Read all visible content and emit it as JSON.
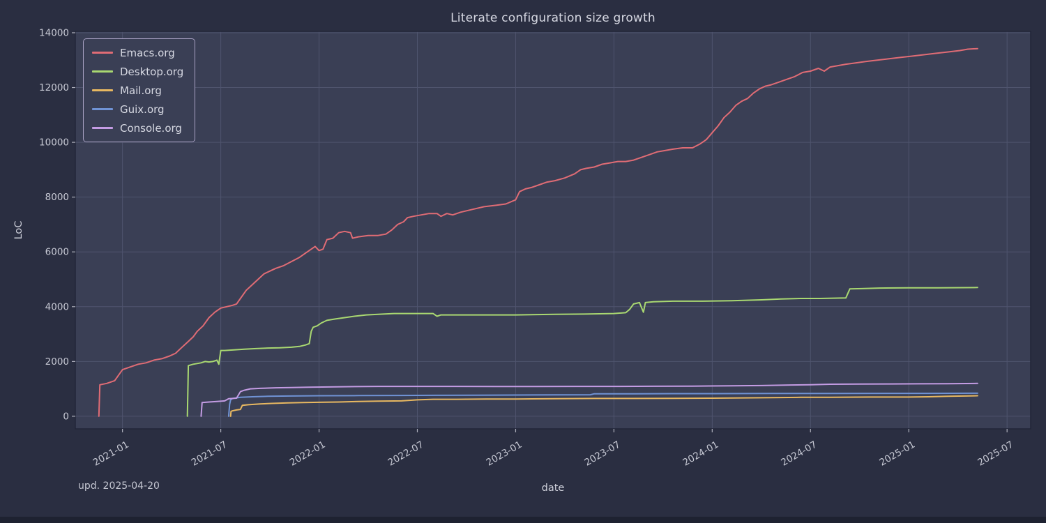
{
  "updated_note": "upd. 2025-04-20",
  "colors": {
    "background": "#2a2e41",
    "plot_background": "#3a3f55",
    "grid": "#4f546e",
    "plot_border": "#222639",
    "tick_text": "#c6c8d3",
    "title_text": "#d6d8e2",
    "tick_mark": "#aeb0bc",
    "legend_border": "#a9a2c4"
  },
  "chart_data": {
    "type": "line",
    "title": "Literate configuration size growth",
    "xlabel": "date",
    "ylabel": "LoC",
    "grid": true,
    "legend_position": "upper left",
    "xlim": [
      2020.76,
      2025.62
    ],
    "ylim": [
      -460,
      14050
    ],
    "x_ticks": [
      {
        "v": 2021.0,
        "label": "2021-01"
      },
      {
        "v": 2021.5,
        "label": "2021-07"
      },
      {
        "v": 2022.0,
        "label": "2022-01"
      },
      {
        "v": 2022.5,
        "label": "2022-07"
      },
      {
        "v": 2023.0,
        "label": "2023-01"
      },
      {
        "v": 2023.5,
        "label": "2023-07"
      },
      {
        "v": 2024.0,
        "label": "2024-01"
      },
      {
        "v": 2024.5,
        "label": "2024-07"
      },
      {
        "v": 2025.0,
        "label": "2025-01"
      },
      {
        "v": 2025.5,
        "label": "2025-07"
      }
    ],
    "y_ticks": [
      0,
      2000,
      4000,
      6000,
      8000,
      10000,
      12000,
      14000
    ],
    "series": [
      {
        "name": "Emacs.org",
        "color": "#e06c75",
        "points": [
          [
            2020.88,
            0
          ],
          [
            2020.885,
            1150
          ],
          [
            2020.92,
            1200
          ],
          [
            2020.96,
            1300
          ],
          [
            2021.0,
            1700
          ],
          [
            2021.04,
            1800
          ],
          [
            2021.08,
            1900
          ],
          [
            2021.12,
            1950
          ],
          [
            2021.16,
            2050
          ],
          [
            2021.2,
            2100
          ],
          [
            2021.24,
            2200
          ],
          [
            2021.27,
            2300
          ],
          [
            2021.3,
            2500
          ],
          [
            2021.33,
            2700
          ],
          [
            2021.36,
            2900
          ],
          [
            2021.38,
            3100
          ],
          [
            2021.41,
            3300
          ],
          [
            2021.44,
            3600
          ],
          [
            2021.47,
            3800
          ],
          [
            2021.5,
            3950
          ],
          [
            2021.53,
            4000
          ],
          [
            2021.56,
            4050
          ],
          [
            2021.58,
            4100
          ],
          [
            2021.6,
            4300
          ],
          [
            2021.63,
            4600
          ],
          [
            2021.66,
            4800
          ],
          [
            2021.69,
            5000
          ],
          [
            2021.72,
            5200
          ],
          [
            2021.75,
            5300
          ],
          [
            2021.78,
            5400
          ],
          [
            2021.82,
            5500
          ],
          [
            2021.86,
            5650
          ],
          [
            2021.9,
            5800
          ],
          [
            2021.93,
            5950
          ],
          [
            2021.96,
            6100
          ],
          [
            2021.98,
            6200
          ],
          [
            2022.0,
            6050
          ],
          [
            2022.02,
            6100
          ],
          [
            2022.04,
            6450
          ],
          [
            2022.07,
            6500
          ],
          [
            2022.1,
            6700
          ],
          [
            2022.13,
            6750
          ],
          [
            2022.16,
            6700
          ],
          [
            2022.17,
            6500
          ],
          [
            2022.2,
            6550
          ],
          [
            2022.25,
            6600
          ],
          [
            2022.3,
            6600
          ],
          [
            2022.34,
            6650
          ],
          [
            2022.37,
            6800
          ],
          [
            2022.4,
            7000
          ],
          [
            2022.43,
            7100
          ],
          [
            2022.45,
            7250
          ],
          [
            2022.48,
            7300
          ],
          [
            2022.52,
            7350
          ],
          [
            2022.56,
            7400
          ],
          [
            2022.6,
            7400
          ],
          [
            2022.62,
            7300
          ],
          [
            2022.65,
            7400
          ],
          [
            2022.68,
            7350
          ],
          [
            2022.72,
            7450
          ],
          [
            2022.78,
            7550
          ],
          [
            2022.84,
            7650
          ],
          [
            2022.9,
            7700
          ],
          [
            2022.95,
            7750
          ],
          [
            2023.0,
            7900
          ],
          [
            2023.02,
            8200
          ],
          [
            2023.05,
            8300
          ],
          [
            2023.08,
            8350
          ],
          [
            2023.12,
            8450
          ],
          [
            2023.16,
            8550
          ],
          [
            2023.2,
            8600
          ],
          [
            2023.25,
            8700
          ],
          [
            2023.3,
            8850
          ],
          [
            2023.33,
            9000
          ],
          [
            2023.36,
            9050
          ],
          [
            2023.4,
            9100
          ],
          [
            2023.44,
            9200
          ],
          [
            2023.48,
            9250
          ],
          [
            2023.52,
            9300
          ],
          [
            2023.56,
            9300
          ],
          [
            2023.6,
            9350
          ],
          [
            2023.64,
            9450
          ],
          [
            2023.68,
            9550
          ],
          [
            2023.72,
            9650
          ],
          [
            2023.76,
            9700
          ],
          [
            2023.8,
            9750
          ],
          [
            2023.85,
            9800
          ],
          [
            2023.9,
            9800
          ],
          [
            2023.94,
            9950
          ],
          [
            2023.97,
            10100
          ],
          [
            2024.0,
            10350
          ],
          [
            2024.03,
            10600
          ],
          [
            2024.06,
            10900
          ],
          [
            2024.09,
            11100
          ],
          [
            2024.12,
            11350
          ],
          [
            2024.15,
            11500
          ],
          [
            2024.18,
            11600
          ],
          [
            2024.21,
            11800
          ],
          [
            2024.24,
            11950
          ],
          [
            2024.27,
            12050
          ],
          [
            2024.3,
            12100
          ],
          [
            2024.34,
            12200
          ],
          [
            2024.38,
            12300
          ],
          [
            2024.42,
            12400
          ],
          [
            2024.46,
            12550
          ],
          [
            2024.5,
            12600
          ],
          [
            2024.54,
            12700
          ],
          [
            2024.57,
            12600
          ],
          [
            2024.6,
            12750
          ],
          [
            2024.64,
            12800
          ],
          [
            2024.68,
            12850
          ],
          [
            2024.73,
            12900
          ],
          [
            2024.78,
            12950
          ],
          [
            2024.84,
            13000
          ],
          [
            2024.9,
            13050
          ],
          [
            2024.96,
            13100
          ],
          [
            2025.02,
            13150
          ],
          [
            2025.08,
            13200
          ],
          [
            2025.14,
            13250
          ],
          [
            2025.2,
            13300
          ],
          [
            2025.26,
            13350
          ],
          [
            2025.3,
            13400
          ],
          [
            2025.35,
            13420
          ]
        ]
      },
      {
        "name": "Desktop.org",
        "color": "#a9d871",
        "points": [
          [
            2021.33,
            0
          ],
          [
            2021.335,
            1850
          ],
          [
            2021.36,
            1900
          ],
          [
            2021.4,
            1950
          ],
          [
            2021.42,
            2000
          ],
          [
            2021.44,
            1980
          ],
          [
            2021.46,
            2000
          ],
          [
            2021.48,
            2050
          ],
          [
            2021.49,
            1900
          ],
          [
            2021.5,
            2400
          ],
          [
            2021.52,
            2400
          ],
          [
            2021.56,
            2420
          ],
          [
            2021.62,
            2450
          ],
          [
            2021.68,
            2470
          ],
          [
            2021.74,
            2490
          ],
          [
            2021.8,
            2500
          ],
          [
            2021.86,
            2520
          ],
          [
            2021.9,
            2550
          ],
          [
            2021.93,
            2600
          ],
          [
            2021.95,
            2650
          ],
          [
            2021.96,
            3100
          ],
          [
            2021.97,
            3250
          ],
          [
            2021.99,
            3300
          ],
          [
            2022.01,
            3400
          ],
          [
            2022.04,
            3500
          ],
          [
            2022.08,
            3550
          ],
          [
            2022.13,
            3600
          ],
          [
            2022.18,
            3650
          ],
          [
            2022.24,
            3700
          ],
          [
            2022.3,
            3720
          ],
          [
            2022.38,
            3750
          ],
          [
            2022.5,
            3750
          ],
          [
            2022.58,
            3750
          ],
          [
            2022.6,
            3650
          ],
          [
            2022.62,
            3700
          ],
          [
            2022.7,
            3700
          ],
          [
            2022.85,
            3700
          ],
          [
            2023.0,
            3700
          ],
          [
            2023.2,
            3720
          ],
          [
            2023.35,
            3730
          ],
          [
            2023.5,
            3750
          ],
          [
            2023.56,
            3780
          ],
          [
            2023.58,
            3900
          ],
          [
            2023.6,
            4100
          ],
          [
            2023.63,
            4150
          ],
          [
            2023.65,
            3800
          ],
          [
            2023.66,
            4150
          ],
          [
            2023.7,
            4180
          ],
          [
            2023.8,
            4200
          ],
          [
            2023.95,
            4200
          ],
          [
            2024.1,
            4220
          ],
          [
            2024.25,
            4250
          ],
          [
            2024.35,
            4280
          ],
          [
            2024.45,
            4300
          ],
          [
            2024.55,
            4300
          ],
          [
            2024.68,
            4320
          ],
          [
            2024.7,
            4650
          ],
          [
            2024.76,
            4660
          ],
          [
            2024.85,
            4680
          ],
          [
            2025.0,
            4690
          ],
          [
            2025.15,
            4690
          ],
          [
            2025.35,
            4700
          ]
        ]
      },
      {
        "name": "Mail.org",
        "color": "#e8b861",
        "points": [
          [
            2021.55,
            0
          ],
          [
            2021.552,
            180
          ],
          [
            2021.56,
            200
          ],
          [
            2021.58,
            230
          ],
          [
            2021.6,
            250
          ],
          [
            2021.61,
            400
          ],
          [
            2021.64,
            420
          ],
          [
            2021.7,
            450
          ],
          [
            2021.76,
            470
          ],
          [
            2021.84,
            490
          ],
          [
            2021.92,
            500
          ],
          [
            2022.0,
            510
          ],
          [
            2022.1,
            520
          ],
          [
            2022.2,
            540
          ],
          [
            2022.3,
            550
          ],
          [
            2022.42,
            560
          ],
          [
            2022.5,
            600
          ],
          [
            2022.58,
            620
          ],
          [
            2022.7,
            620
          ],
          [
            2022.85,
            630
          ],
          [
            2023.0,
            630
          ],
          [
            2023.2,
            640
          ],
          [
            2023.4,
            650
          ],
          [
            2023.6,
            650
          ],
          [
            2023.8,
            655
          ],
          [
            2024.0,
            660
          ],
          [
            2024.15,
            670
          ],
          [
            2024.3,
            680
          ],
          [
            2024.45,
            690
          ],
          [
            2024.6,
            690
          ],
          [
            2024.8,
            700
          ],
          [
            2025.0,
            700
          ],
          [
            2025.1,
            710
          ],
          [
            2025.2,
            730
          ],
          [
            2025.35,
            750
          ]
        ]
      },
      {
        "name": "Guix.org",
        "color": "#7093d5",
        "points": [
          [
            2021.54,
            0
          ],
          [
            2021.545,
            430
          ],
          [
            2021.55,
            600
          ],
          [
            2021.56,
            650
          ],
          [
            2021.6,
            690
          ],
          [
            2021.66,
            710
          ],
          [
            2021.74,
            730
          ],
          [
            2021.85,
            740
          ],
          [
            2022.0,
            750
          ],
          [
            2022.2,
            755
          ],
          [
            2022.4,
            760
          ],
          [
            2022.6,
            765
          ],
          [
            2022.8,
            770
          ],
          [
            2023.0,
            775
          ],
          [
            2023.2,
            780
          ],
          [
            2023.38,
            785
          ],
          [
            2023.4,
            820
          ],
          [
            2023.6,
            820
          ],
          [
            2023.8,
            825
          ],
          [
            2024.0,
            825
          ],
          [
            2024.3,
            830
          ],
          [
            2024.6,
            830
          ],
          [
            2024.9,
            835
          ],
          [
            2025.1,
            835
          ],
          [
            2025.35,
            840
          ]
        ]
      },
      {
        "name": "Console.org",
        "color": "#c49ce4",
        "points": [
          [
            2021.4,
            0
          ],
          [
            2021.405,
            500
          ],
          [
            2021.44,
            520
          ],
          [
            2021.48,
            540
          ],
          [
            2021.52,
            560
          ],
          [
            2021.54,
            640
          ],
          [
            2021.56,
            650
          ],
          [
            2021.58,
            660
          ],
          [
            2021.6,
            900
          ],
          [
            2021.62,
            950
          ],
          [
            2021.65,
            1000
          ],
          [
            2021.7,
            1020
          ],
          [
            2021.78,
            1040
          ],
          [
            2021.86,
            1050
          ],
          [
            2021.95,
            1060
          ],
          [
            2022.05,
            1070
          ],
          [
            2022.15,
            1080
          ],
          [
            2022.3,
            1090
          ],
          [
            2022.5,
            1090
          ],
          [
            2022.7,
            1090
          ],
          [
            2022.9,
            1085
          ],
          [
            2023.1,
            1085
          ],
          [
            2023.3,
            1090
          ],
          [
            2023.5,
            1090
          ],
          [
            2023.7,
            1095
          ],
          [
            2023.9,
            1100
          ],
          [
            2024.1,
            1110
          ],
          [
            2024.25,
            1120
          ],
          [
            2024.4,
            1140
          ],
          [
            2024.5,
            1150
          ],
          [
            2024.6,
            1170
          ],
          [
            2024.75,
            1175
          ],
          [
            2024.9,
            1180
          ],
          [
            2025.05,
            1185
          ],
          [
            2025.2,
            1190
          ],
          [
            2025.35,
            1200
          ]
        ]
      }
    ]
  }
}
